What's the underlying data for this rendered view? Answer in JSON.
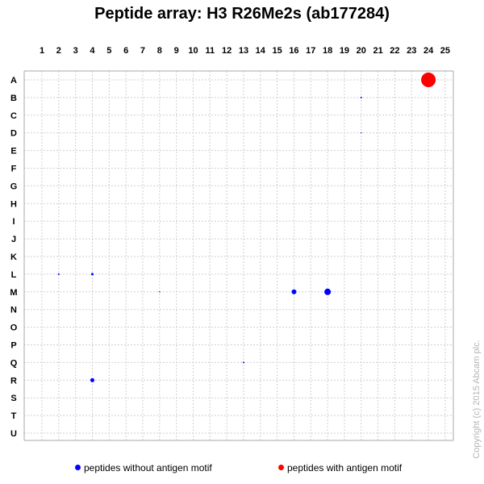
{
  "title": "Peptide array:  H3 R26Me2s (ab177284)",
  "chart_data": {
    "type": "scatter",
    "x_categories": [
      "1",
      "2",
      "3",
      "4",
      "5",
      "6",
      "7",
      "8",
      "9",
      "10",
      "11",
      "12",
      "13",
      "14",
      "15",
      "16",
      "17",
      "18",
      "19",
      "20",
      "21",
      "22",
      "23",
      "24",
      "25"
    ],
    "y_categories": [
      "A",
      "B",
      "C",
      "D",
      "E",
      "F",
      "G",
      "H",
      "I",
      "J",
      "K",
      "L",
      "M",
      "N",
      "O",
      "P",
      "Q",
      "R",
      "S",
      "T",
      "U"
    ],
    "grid": true,
    "legend_placement": "bottom",
    "series": [
      {
        "name": "peptides without antigen motif",
        "color": "#0000ff",
        "points": [
          {
            "x": "20",
            "y": "B",
            "size": 2
          },
          {
            "x": "20",
            "y": "D",
            "size": 1
          },
          {
            "x": "2",
            "y": "L",
            "size": 2
          },
          {
            "x": "4",
            "y": "L",
            "size": 3
          },
          {
            "x": "8",
            "y": "M",
            "size": 1
          },
          {
            "x": "16",
            "y": "M",
            "size": 6
          },
          {
            "x": "18",
            "y": "M",
            "size": 8
          },
          {
            "x": "13",
            "y": "Q",
            "size": 2
          },
          {
            "x": "4",
            "y": "R",
            "size": 5
          }
        ]
      },
      {
        "name": "peptides with antigen motif",
        "color": "#ff0000",
        "points": [
          {
            "x": "24",
            "y": "A",
            "size": 18
          }
        ]
      }
    ]
  },
  "legend": {
    "items": [
      {
        "label": "peptides without antigen motif",
        "color": "#0000ff"
      },
      {
        "label": "peptides with antigen motif",
        "color": "#ff0000"
      }
    ]
  },
  "copyright": "Copyright (c) 2015 Abcam plc."
}
